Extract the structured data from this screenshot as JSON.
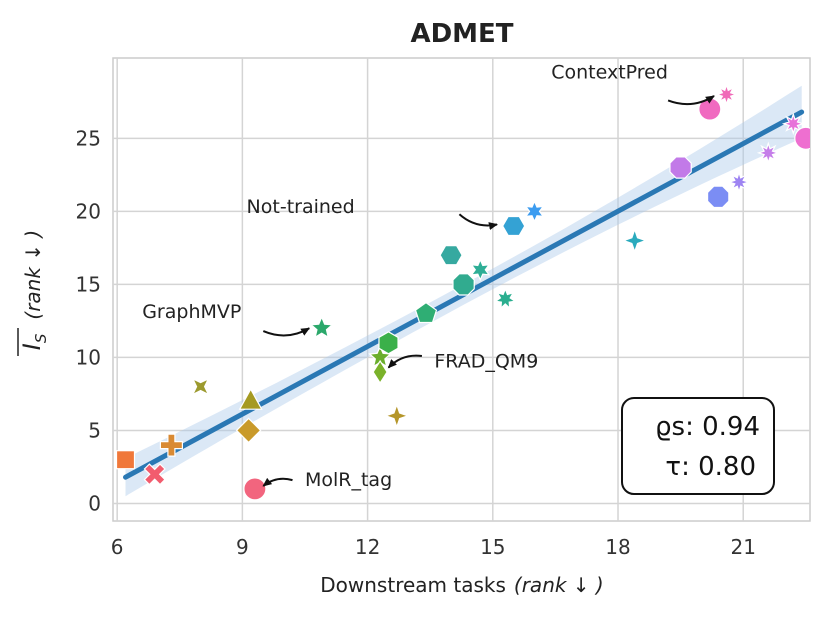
{
  "chart_data": {
    "type": "scatter",
    "title": "ADMET",
    "xlabel": "Downstream tasks",
    "xlabel_suffix": "(rank ↓ )",
    "ylabel_symbol": "I",
    "ylabel_sub": "S",
    "ylabel_suffix": "(rank ↓ )",
    "xlim": [
      5.9,
      22.6
    ],
    "ylim": [
      -1.2,
      30.5
    ],
    "xticks": [
      6,
      9,
      12,
      15,
      18,
      21
    ],
    "yticks": [
      0,
      5,
      10,
      15,
      20,
      25
    ],
    "grid": true,
    "regression": {
      "x0": 6.2,
      "y0": 1.8,
      "x1": 22.4,
      "y1": 26.8,
      "band_halfwidth_start": 1.3,
      "band_halfwidth_mid": 0.7,
      "band_halfwidth_end": 1.8
    },
    "points": [
      {
        "x": 6.2,
        "y": 3,
        "marker": "square",
        "color": "#f0783a"
      },
      {
        "x": 6.9,
        "y": 2,
        "marker": "x",
        "color": "#f25c6e"
      },
      {
        "x": 7.3,
        "y": 4,
        "marker": "plus",
        "color": "#d98a33"
      },
      {
        "x": 8.0,
        "y": 8,
        "marker": "x4",
        "color": "#9c9a2e"
      },
      {
        "x": 9.2,
        "y": 7,
        "marker": "triangle",
        "color": "#a59a22"
      },
      {
        "x": 9.15,
        "y": 5,
        "marker": "diamond",
        "color": "#c99a2a"
      },
      {
        "x": 9.3,
        "y": 1,
        "marker": "circle",
        "color": "#f2657e"
      },
      {
        "x": 10.9,
        "y": 12,
        "marker": "star5",
        "color": "#2ba86b"
      },
      {
        "x": 12.3,
        "y": 10,
        "marker": "star5",
        "color": "#6aae2c"
      },
      {
        "x": 12.5,
        "y": 11,
        "marker": "hexagon",
        "color": "#3bb04a"
      },
      {
        "x": 12.3,
        "y": 9,
        "marker": "thin_diamond",
        "color": "#7ab22a"
      },
      {
        "x": 12.7,
        "y": 6,
        "marker": "star4",
        "color": "#b5962a"
      },
      {
        "x": 13.4,
        "y": 13,
        "marker": "pentagon",
        "color": "#2fae74"
      },
      {
        "x": 14.0,
        "y": 17,
        "marker": "hexagon2",
        "color": "#36a9a0"
      },
      {
        "x": 14.3,
        "y": 15,
        "marker": "octagon",
        "color": "#31ab8f"
      },
      {
        "x": 14.7,
        "y": 16,
        "marker": "star6",
        "color": "#2eae96"
      },
      {
        "x": 15.3,
        "y": 14,
        "marker": "star7",
        "color": "#2aae8f"
      },
      {
        "x": 15.5,
        "y": 19,
        "marker": "hexagon2",
        "color": "#34a2d4"
      },
      {
        "x": 16.0,
        "y": 20,
        "marker": "star6",
        "color": "#3c9cf0"
      },
      {
        "x": 18.4,
        "y": 18,
        "marker": "star4",
        "color": "#2aaabd"
      },
      {
        "x": 19.5,
        "y": 23,
        "marker": "octagon",
        "color": "#c27ae8"
      },
      {
        "x": 20.4,
        "y": 21,
        "marker": "octagon",
        "color": "#7b8df4"
      },
      {
        "x": 20.2,
        "y": 27,
        "marker": "circle",
        "color": "#f06ac0"
      },
      {
        "x": 20.6,
        "y": 28,
        "marker": "star8",
        "color": "#f06ab8"
      },
      {
        "x": 20.9,
        "y": 22,
        "marker": "star8",
        "color": "#9e84f2"
      },
      {
        "x": 21.6,
        "y": 24,
        "marker": "star8",
        "color": "#c57ee9"
      },
      {
        "x": 22.2,
        "y": 26,
        "marker": "star8",
        "color": "#e772d9"
      },
      {
        "x": 22.5,
        "y": 25,
        "marker": "circle",
        "color": "#ee6fd0"
      }
    ],
    "annotations": [
      {
        "text": "ContextPred",
        "text_x": 16.4,
        "text_y": 29.1,
        "anchor": "start",
        "arrow_from": [
          19.2,
          27.6
        ],
        "arrow_to": [
          20.3,
          27.9
        ]
      },
      {
        "text": "Not-trained",
        "text_x": 9.1,
        "text_y": 19.9,
        "anchor": "start",
        "arrow_from": [
          14.2,
          19.8
        ],
        "arrow_to": [
          15.1,
          19.1
        ]
      },
      {
        "text": "GraphMVP",
        "text_x": 6.6,
        "text_y": 12.7,
        "anchor": "start",
        "arrow_from": [
          9.5,
          11.8
        ],
        "arrow_to": [
          10.6,
          12.0
        ]
      },
      {
        "text": "FRAD_QM9",
        "text_x": 13.6,
        "text_y": 9.3,
        "anchor": "start",
        "arrow_from": [
          13.3,
          10.1
        ],
        "arrow_to": [
          12.5,
          9.3
        ]
      },
      {
        "text": "MolR_tag",
        "text_x": 10.5,
        "text_y": 1.2,
        "anchor": "start",
        "arrow_from": [
          10.2,
          1.6
        ],
        "arrow_to": [
          9.5,
          1.2
        ]
      }
    ],
    "stats": {
      "rho_label": "ϱs: 0.94",
      "tau_label": "τ: 0.80"
    }
  }
}
